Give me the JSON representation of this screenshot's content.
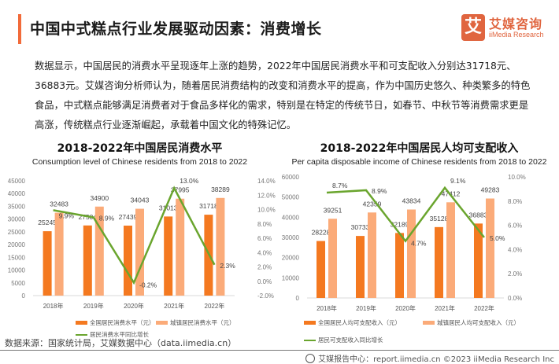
{
  "header": {
    "title": "中国中式糕点行业发展驱动因素：消费增长",
    "logo": {
      "glyph": "艾",
      "name_cn": "艾媒咨询",
      "name_en": "iiMedia Research",
      "color": "#e0653f"
    }
  },
  "intro": "数据显示，中国居民的消费水平呈现逐年上涨的趋势，2022年中国居民消费水平和可支配收入分别达31718元、36883元。艾媒咨询分析师认为，随着居民消费结构的改变和消费水平的提高，作为中国历史悠久、种类繁多的特色食品，中式糕点能够满足消费者对于食品多样化的需求，特别是在特定的传统节日，如春节、中秋节等消费需求更是高涨，传统糕点行业逐渐崛起，承载着中国文化的特殊记忆。",
  "chart_data": [
    {
      "type": "bar",
      "title": "2018-2022年中国居民消费水平",
      "subtitle": "Consumption level of Chinese residents from 2018 to 2022",
      "categories": [
        "2018年",
        "2019年",
        "2020年",
        "2021年",
        "2022年"
      ],
      "series": [
        {
          "name": "全国居民消费水平（元）",
          "kind": "bar",
          "axis": "left",
          "color": "#f47920",
          "values": [
            25245,
            27504,
            27439,
            31013,
            31718
          ]
        },
        {
          "name": "城镇居民消费水平（元）",
          "kind": "bar",
          "axis": "left",
          "color": "#fbab79",
          "values": [
            32483,
            34900,
            34043,
            37995,
            38289
          ]
        },
        {
          "name": "居民消费水平同比增长",
          "kind": "line",
          "axis": "right",
          "color": "#6aa52e",
          "values": [
            9.9,
            8.9,
            -0.2,
            13.0,
            2.3
          ],
          "labels": [
            "9.9%",
            "8.9%",
            "-0.2%",
            "13.0%",
            "2.3%"
          ]
        }
      ],
      "ylim": [
        0,
        45000
      ],
      "yticks": [
        "45000",
        "40000",
        "35000",
        "30000",
        "25000",
        "20000",
        "15000",
        "10000",
        "5000",
        "0"
      ],
      "y2lim": [
        -2.0,
        14.0
      ],
      "y2ticks": [
        "14.0%",
        "12.0%",
        "10.0%",
        "8.0%",
        "6.0%",
        "4.0%",
        "2.0%",
        "0.0%",
        "-2.0%"
      ],
      "legend": "bottom",
      "grid": false
    },
    {
      "type": "bar",
      "title": "2018-2022年中国居民人均可支配收入",
      "subtitle": "Per capita disposable income of Chinese residents from 2018 to 2022",
      "categories": [
        "2018年",
        "2019年",
        "2020年",
        "2021年",
        "2022年"
      ],
      "series": [
        {
          "name": "全国居民人均可支配收入（元）",
          "kind": "bar",
          "axis": "left",
          "color": "#f47920",
          "values": [
            28228,
            30733,
            32189,
            35128,
            36883
          ]
        },
        {
          "name": "城镇居民人均可支配收入（元）",
          "kind": "bar",
          "axis": "left",
          "color": "#fbab79",
          "values": [
            39251,
            42359,
            43834,
            47412,
            49283
          ]
        },
        {
          "name": "居民可支配收入同比增长",
          "kind": "line",
          "axis": "right",
          "color": "#6aa52e",
          "values": [
            8.7,
            8.9,
            4.7,
            9.1,
            5.0
          ],
          "labels": [
            "8.7%",
            "8.9%",
            "4.7%",
            "9.1%",
            "5.0%"
          ]
        }
      ],
      "ylim": [
        0,
        60000
      ],
      "yticks": [
        "60000",
        "50000",
        "40000",
        "30000",
        "20000",
        "10000",
        "0"
      ],
      "y2lim": [
        0.0,
        10.0
      ],
      "y2ticks": [
        "10.0%",
        "8.0%",
        "6.0%",
        "4.0%",
        "2.0%",
        "0.0%"
      ],
      "legend": "bottom",
      "grid": false
    }
  ],
  "source": "数据来源：国家统计局，艾媒数据中心（data.iimedia.cn）",
  "footer": "艾媒报告中心：report.iimedia.cn  ©2023  iiMedia Research  Inc"
}
